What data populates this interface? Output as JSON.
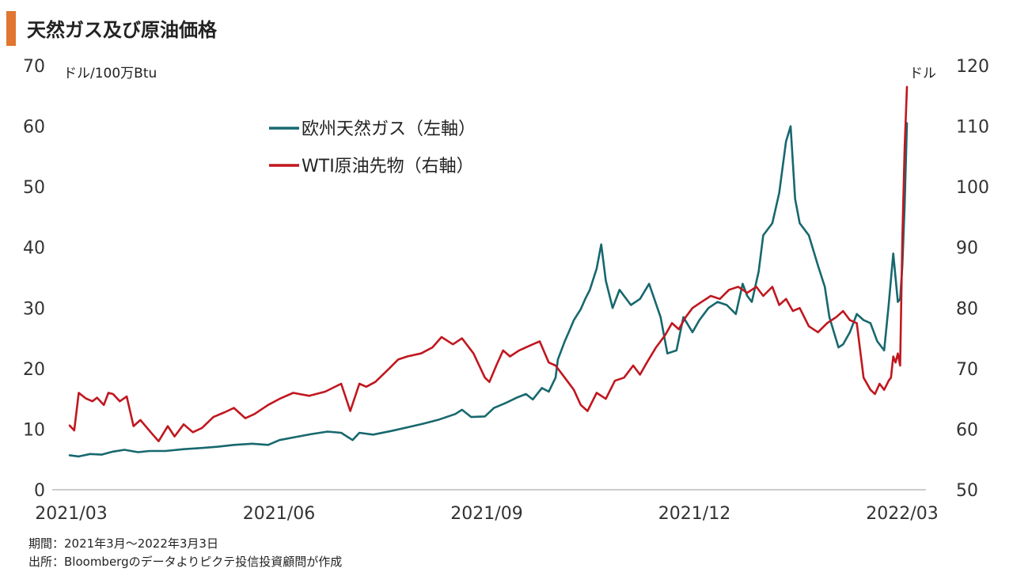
{
  "header": {
    "title": "天然ガス及び原油価格"
  },
  "notes": {
    "period": "期間：2021年3月～2022年3月3日",
    "source": "出所：Bloombergのデータよりピクテ投信投資顧問が作成"
  },
  "chart_data": {
    "type": "line",
    "x_tick_labels": [
      "2021/03",
      "2021/06",
      "2021/09",
      "2021/12",
      "2022/03"
    ],
    "x_range": [
      "2021-03-01",
      "2022-03-03"
    ],
    "y_left": {
      "unit_label": "ドル/100万Btu",
      "min": 0,
      "max": 70,
      "ticks": [
        0,
        10,
        20,
        30,
        40,
        50,
        60,
        70
      ]
    },
    "y_right": {
      "unit_label": "ドル",
      "min": 50,
      "max": 120,
      "ticks": [
        50,
        60,
        70,
        80,
        90,
        100,
        110,
        120
      ]
    },
    "grid": false,
    "legend_position": "top-center",
    "series": [
      {
        "name": "欧州天然ガス（左軸）",
        "axis": "left",
        "color": "#17686e",
        "points": [
          [
            "2021-03-01",
            5.7
          ],
          [
            "2021-03-05",
            5.5
          ],
          [
            "2021-03-10",
            5.9
          ],
          [
            "2021-03-15",
            5.8
          ],
          [
            "2021-03-20",
            6.3
          ],
          [
            "2021-03-25",
            6.6
          ],
          [
            "2021-03-31",
            6.2
          ],
          [
            "2021-04-05",
            6.4
          ],
          [
            "2021-04-12",
            6.4
          ],
          [
            "2021-04-20",
            6.7
          ],
          [
            "2021-04-28",
            6.9
          ],
          [
            "2021-05-05",
            7.1
          ],
          [
            "2021-05-12",
            7.4
          ],
          [
            "2021-05-20",
            7.6
          ],
          [
            "2021-05-27",
            7.4
          ],
          [
            "2021-06-01",
            8.2
          ],
          [
            "2021-06-08",
            8.7
          ],
          [
            "2021-06-15",
            9.2
          ],
          [
            "2021-06-22",
            9.6
          ],
          [
            "2021-06-28",
            9.4
          ],
          [
            "2021-07-03",
            8.2
          ],
          [
            "2021-07-06",
            9.4
          ],
          [
            "2021-07-12",
            9.1
          ],
          [
            "2021-07-20",
            9.7
          ],
          [
            "2021-07-27",
            10.3
          ],
          [
            "2021-08-03",
            10.9
          ],
          [
            "2021-08-10",
            11.6
          ],
          [
            "2021-08-17",
            12.5
          ],
          [
            "2021-08-20",
            13.2
          ],
          [
            "2021-08-24",
            12.0
          ],
          [
            "2021-08-30",
            12.1
          ],
          [
            "2021-09-03",
            13.5
          ],
          [
            "2021-09-08",
            14.3
          ],
          [
            "2021-09-13",
            15.2
          ],
          [
            "2021-09-17",
            15.8
          ],
          [
            "2021-09-20",
            14.9
          ],
          [
            "2021-09-24",
            16.8
          ],
          [
            "2021-09-27",
            16.2
          ],
          [
            "2021-09-30",
            18.5
          ],
          [
            "2021-10-01",
            21.5
          ],
          [
            "2021-10-04",
            24.5
          ],
          [
            "2021-10-06",
            26.2
          ],
          [
            "2021-10-08",
            28.0
          ],
          [
            "2021-10-11",
            29.8
          ],
          [
            "2021-10-13",
            31.5
          ],
          [
            "2021-10-15",
            33.0
          ],
          [
            "2021-10-18",
            36.5
          ],
          [
            "2021-10-20",
            40.5
          ],
          [
            "2021-10-22",
            34.5
          ],
          [
            "2021-10-25",
            30.0
          ],
          [
            "2021-10-28",
            33.0
          ],
          [
            "2021-11-02",
            30.5
          ],
          [
            "2021-11-06",
            31.5
          ],
          [
            "2021-11-10",
            34.0
          ],
          [
            "2021-11-15",
            28.5
          ],
          [
            "2021-11-18",
            22.5
          ],
          [
            "2021-11-22",
            23.0
          ],
          [
            "2021-11-25",
            28.5
          ],
          [
            "2021-11-29",
            26.0
          ],
          [
            "2021-12-02",
            28.0
          ],
          [
            "2021-12-06",
            30.0
          ],
          [
            "2021-12-10",
            31.0
          ],
          [
            "2021-12-14",
            30.5
          ],
          [
            "2021-12-18",
            29.0
          ],
          [
            "2021-12-21",
            34.0
          ],
          [
            "2021-12-23",
            32.0
          ],
          [
            "2021-12-25",
            31.0
          ],
          [
            "2021-12-28",
            36.0
          ],
          [
            "2021-12-30",
            42.0
          ],
          [
            "2022-01-03",
            44.0
          ],
          [
            "2022-01-06",
            49.0
          ],
          [
            "2022-01-09",
            57.5
          ],
          [
            "2022-01-11",
            60.0
          ],
          [
            "2022-01-13",
            48.0
          ],
          [
            "2022-01-15",
            44.0
          ],
          [
            "2022-01-19",
            42.0
          ],
          [
            "2022-01-23",
            37.0
          ],
          [
            "2022-01-26",
            33.5
          ],
          [
            "2022-01-28",
            28.5
          ],
          [
            "2022-02-01",
            23.5
          ],
          [
            "2022-02-03",
            24.0
          ],
          [
            "2022-02-06",
            26.0
          ],
          [
            "2022-02-09",
            29.0
          ],
          [
            "2022-02-12",
            28.0
          ],
          [
            "2022-02-15",
            27.5
          ],
          [
            "2022-02-18",
            24.5
          ],
          [
            "2022-02-21",
            23.0
          ],
          [
            "2022-02-23",
            30.5
          ],
          [
            "2022-02-25",
            39.0
          ],
          [
            "2022-02-27",
            31.0
          ],
          [
            "2022-02-28",
            31.5
          ],
          [
            "2022-03-01",
            37.0
          ],
          [
            "2022-03-02",
            47.0
          ],
          [
            "2022-03-03",
            60.5
          ]
        ]
      },
      {
        "name": "WTI原油先物（右軸）",
        "axis": "right",
        "color": "#c0171f",
        "points": [
          [
            "2021-03-01",
            60.6
          ],
          [
            "2021-03-03",
            59.8
          ],
          [
            "2021-03-05",
            66.0
          ],
          [
            "2021-03-08",
            65.1
          ],
          [
            "2021-03-11",
            64.6
          ],
          [
            "2021-03-13",
            65.2
          ],
          [
            "2021-03-16",
            64.0
          ],
          [
            "2021-03-18",
            66.0
          ],
          [
            "2021-03-20",
            65.8
          ],
          [
            "2021-03-23",
            64.6
          ],
          [
            "2021-03-26",
            65.4
          ],
          [
            "2021-03-29",
            60.5
          ],
          [
            "2021-04-01",
            61.5
          ],
          [
            "2021-04-06",
            59.3
          ],
          [
            "2021-04-09",
            58.0
          ],
          [
            "2021-04-13",
            60.5
          ],
          [
            "2021-04-16",
            58.8
          ],
          [
            "2021-04-20",
            60.8
          ],
          [
            "2021-04-24",
            59.5
          ],
          [
            "2021-04-28",
            60.2
          ],
          [
            "2021-05-03",
            62.0
          ],
          [
            "2021-05-08",
            62.8
          ],
          [
            "2021-05-12",
            63.5
          ],
          [
            "2021-05-17",
            61.8
          ],
          [
            "2021-05-21",
            62.5
          ],
          [
            "2021-05-27",
            64.0
          ],
          [
            "2021-06-01",
            65.0
          ],
          [
            "2021-06-07",
            66.0
          ],
          [
            "2021-06-14",
            65.5
          ],
          [
            "2021-06-21",
            66.2
          ],
          [
            "2021-06-28",
            67.5
          ],
          [
            "2021-07-02",
            63.0
          ],
          [
            "2021-07-06",
            67.5
          ],
          [
            "2021-07-09",
            67.0
          ],
          [
            "2021-07-13",
            67.8
          ],
          [
            "2021-07-19",
            70.0
          ],
          [
            "2021-07-23",
            71.5
          ],
          [
            "2021-07-27",
            72.0
          ],
          [
            "2021-08-02",
            72.5
          ],
          [
            "2021-08-07",
            73.5
          ],
          [
            "2021-08-11",
            75.2
          ],
          [
            "2021-08-16",
            74.0
          ],
          [
            "2021-08-20",
            75.0
          ],
          [
            "2021-08-25",
            72.5
          ],
          [
            "2021-08-30",
            68.5
          ],
          [
            "2021-09-01",
            67.8
          ],
          [
            "2021-09-04",
            70.5
          ],
          [
            "2021-09-07",
            73.0
          ],
          [
            "2021-09-10",
            72.0
          ],
          [
            "2021-09-14",
            73.0
          ],
          [
            "2021-09-20",
            74.0
          ],
          [
            "2021-09-23",
            74.5
          ],
          [
            "2021-09-27",
            71.0
          ],
          [
            "2021-09-30",
            70.5
          ],
          [
            "2021-10-04",
            68.5
          ],
          [
            "2021-10-08",
            66.5
          ],
          [
            "2021-10-11",
            64.0
          ],
          [
            "2021-10-14",
            63.0
          ],
          [
            "2021-10-18",
            66.0
          ],
          [
            "2021-10-22",
            65.0
          ],
          [
            "2021-10-26",
            68.0
          ],
          [
            "2021-10-30",
            68.5
          ],
          [
            "2021-11-03",
            70.5
          ],
          [
            "2021-11-06",
            69.0
          ],
          [
            "2021-11-09",
            71.0
          ],
          [
            "2021-11-13",
            73.5
          ],
          [
            "2021-11-17",
            75.5
          ],
          [
            "2021-11-20",
            77.5
          ],
          [
            "2021-11-23",
            76.5
          ],
          [
            "2021-11-26",
            78.5
          ],
          [
            "2021-11-29",
            80.0
          ],
          [
            "2021-12-03",
            81.0
          ],
          [
            "2021-12-07",
            82.0
          ],
          [
            "2021-12-11",
            81.5
          ],
          [
            "2021-12-15",
            83.0
          ],
          [
            "2021-12-19",
            83.5
          ],
          [
            "2021-12-23",
            82.5
          ],
          [
            "2021-12-27",
            83.5
          ],
          [
            "2021-12-30",
            82.0
          ],
          [
            "2022-01-03",
            83.5
          ],
          [
            "2022-01-06",
            80.5
          ],
          [
            "2022-01-09",
            81.5
          ],
          [
            "2022-01-12",
            79.5
          ],
          [
            "2022-01-15",
            80.0
          ],
          [
            "2022-01-19",
            77.0
          ],
          [
            "2022-01-23",
            76.0
          ],
          [
            "2022-01-27",
            77.5
          ],
          [
            "2022-01-31",
            78.5
          ],
          [
            "2022-02-03",
            79.5
          ],
          [
            "2022-02-06",
            78.0
          ],
          [
            "2022-02-09",
            77.5
          ],
          [
            "2022-02-12",
            68.5
          ],
          [
            "2022-02-15",
            66.5
          ],
          [
            "2022-02-17",
            65.8
          ],
          [
            "2022-02-19",
            67.5
          ],
          [
            "2022-02-21",
            66.5
          ],
          [
            "2022-02-23",
            68.0
          ],
          [
            "2022-02-24",
            68.5
          ],
          [
            "2022-02-25",
            72.0
          ],
          [
            "2022-02-26",
            71.0
          ],
          [
            "2022-02-27",
            72.5
          ],
          [
            "2022-02-28",
            70.5
          ],
          [
            "2022-03-01",
            91.5
          ],
          [
            "2022-03-02",
            106.5
          ],
          [
            "2022-03-03",
            116.5
          ]
        ]
      }
    ]
  }
}
